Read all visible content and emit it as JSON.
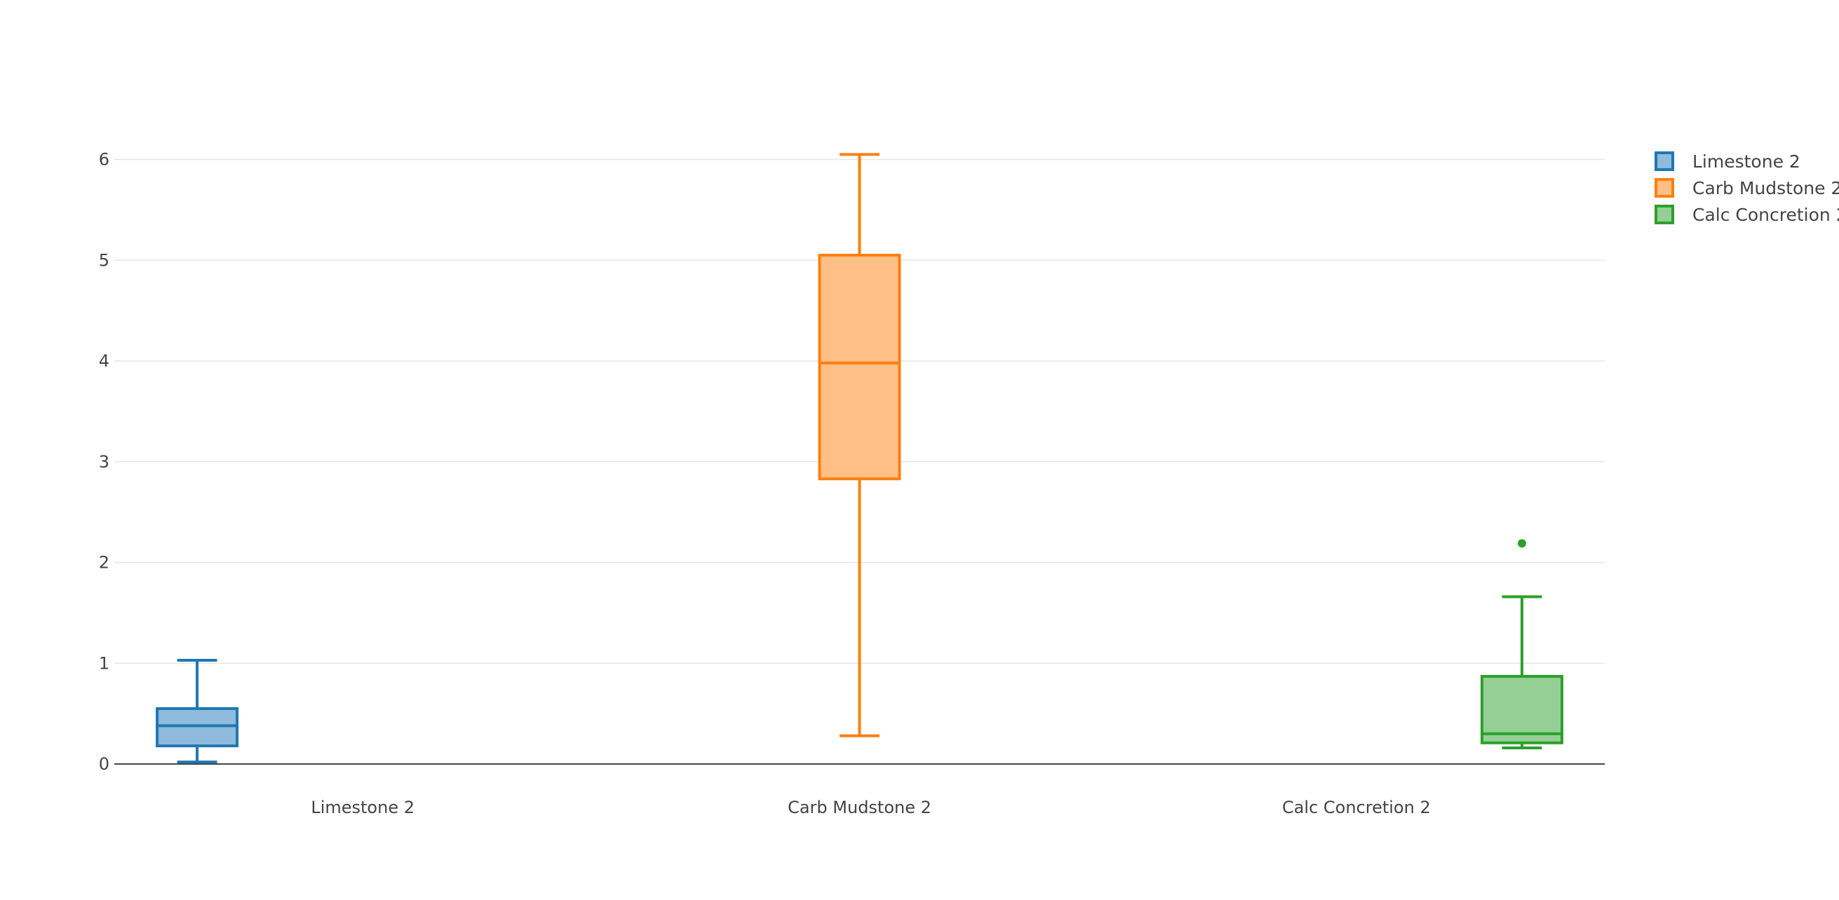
{
  "chart_data": {
    "type": "box",
    "title": "",
    "xlabel": "",
    "ylabel": "",
    "ylim": [
      0,
      6.4
    ],
    "yticks": [
      0,
      1,
      2,
      3,
      4,
      5,
      6
    ],
    "grid": true,
    "legend_position": "top-right",
    "categories": [
      "Limestone 2",
      "Carb Mudstone 2",
      "Calc Concretion 2"
    ],
    "series": [
      {
        "name": "Limestone 2",
        "color": "#1f77b4",
        "fill": "#8fbbdc",
        "category": "Limestone 2",
        "whisker_low": 0.02,
        "q1": 0.18,
        "median": 0.38,
        "q3": 0.55,
        "whisker_high": 1.03,
        "outliers": []
      },
      {
        "name": "Carb Mudstone 2",
        "color": "#ff7f0e",
        "fill": "#ffbf86",
        "category": "Carb Mudstone 2",
        "whisker_low": 0.28,
        "q1": 2.83,
        "median": 3.98,
        "q3": 5.05,
        "whisker_high": 6.05,
        "outliers": []
      },
      {
        "name": "Calc Concretion 2",
        "color": "#2ca02c",
        "fill": "#95cf95",
        "category": "Calc Concretion 2",
        "whisker_low": 0.16,
        "q1": 0.21,
        "median": 0.3,
        "q3": 0.87,
        "whisker_high": 1.66,
        "outliers": [
          2.19
        ]
      }
    ]
  }
}
